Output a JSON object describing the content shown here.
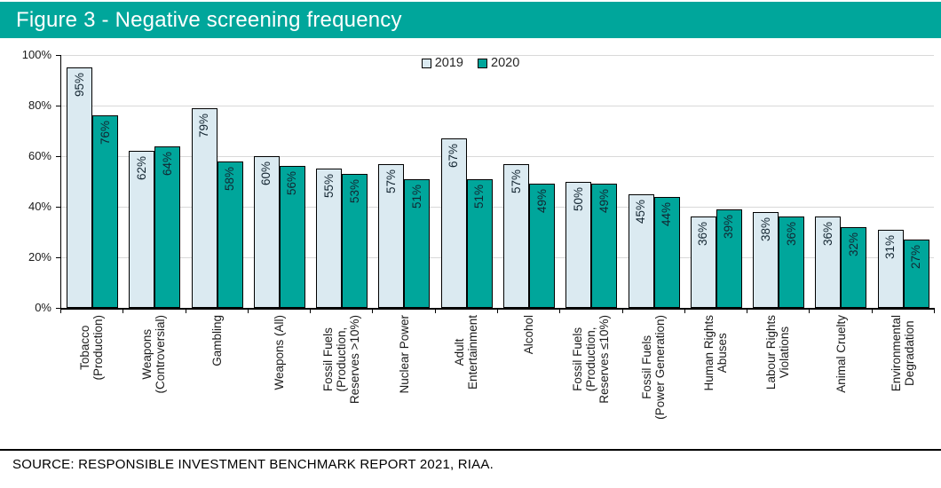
{
  "title": "Figure 3 - Negative screening frequency",
  "source": "SOURCE: RESPONSIBLE INVESTMENT BENCHMARK REPORT 2021, RIAA.",
  "colors": {
    "banner_bg": "#00A69B",
    "banner_text": "#FFFFFF",
    "series_2019": "#DBEAF1",
    "series_2020": "#00A69B",
    "bar_border": "#000000",
    "gridline": "#D9D9D9",
    "axis": "#000000",
    "value_label_text": "#132531"
  },
  "chart_data": {
    "type": "bar",
    "title": "Figure 3 - Negative screening frequency",
    "categories": [
      "Tobacco\n(Production)",
      "Weapons\n(Controversial)",
      "Gambling",
      "Weapons (All)",
      "Fossil Fuels\n(Production,\nReserves >10%)",
      "Nuclear Power",
      "Adult\nEntertainment",
      "Alcohol",
      "Fossil Fuels\n(Production,\nReserves ≤10%)",
      "Fossil Fuels\n(Power Generation)",
      "Human Rights\nAbuses",
      "Labour Rights\nViolations",
      "Animal Cruelty",
      "Environmental\nDegradation"
    ],
    "series": [
      {
        "name": "2019",
        "color": "#DBEAF1",
        "values": [
          95,
          62,
          79,
          60,
          55,
          57,
          67,
          57,
          50,
          45,
          36,
          38,
          36,
          31
        ]
      },
      {
        "name": "2020",
        "color": "#00A69B",
        "values": [
          76,
          64,
          58,
          56,
          53,
          51,
          51,
          49,
          49,
          44,
          39,
          36,
          32,
          27
        ]
      }
    ],
    "data_label_suffix": "%",
    "xlabel": "",
    "ylabel": "",
    "ylim": [
      0,
      100
    ],
    "y_ticks": [
      "0%",
      "20%",
      "40%",
      "60%",
      "80%",
      "100%"
    ],
    "grid": true,
    "legend_position": "top-center"
  }
}
